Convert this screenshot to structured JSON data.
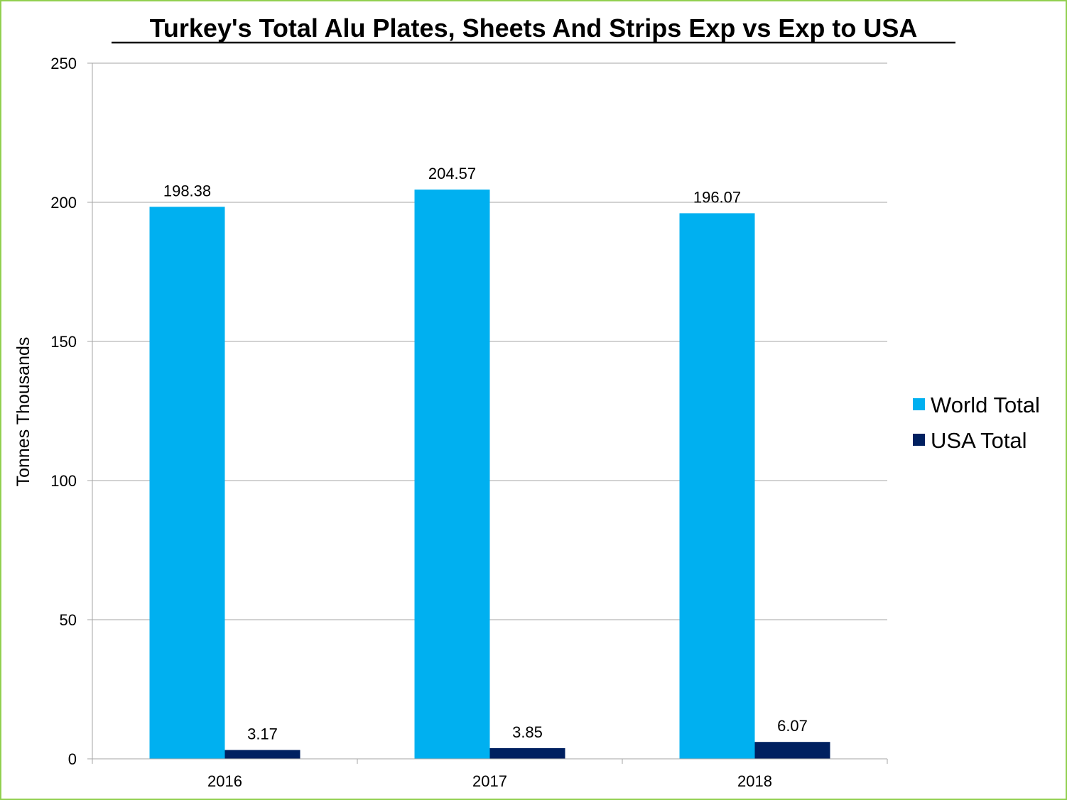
{
  "chart_data": {
    "type": "bar",
    "title": "Turkey's Total Alu Plates, Sheets And Strips Exp vs Exp to USA",
    "xlabel": "",
    "ylabel": "Tonnes Thousands",
    "categories": [
      "2016",
      "2017",
      "2018"
    ],
    "series": [
      {
        "name": "World Total",
        "values": [
          198.38,
          204.57,
          196.07
        ],
        "labels": [
          "198.38",
          "204.57",
          "196.07"
        ],
        "color": "#00b0f0"
      },
      {
        "name": "USA Total",
        "values": [
          3.17,
          3.85,
          6.07
        ],
        "labels": [
          "3.17",
          "3.85",
          "6.07"
        ],
        "color": "#002060"
      }
    ],
    "ylim": [
      0,
      250
    ],
    "yticks": [
      0,
      50,
      100,
      150,
      200,
      250
    ],
    "grid": true,
    "legend": "right"
  },
  "colors": {
    "frame_border": "#92d050",
    "gridline": "#a6a6a6"
  }
}
